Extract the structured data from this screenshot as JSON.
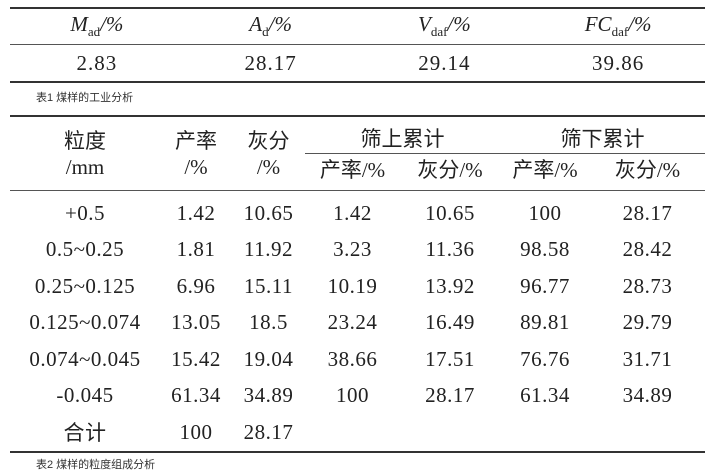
{
  "table1": {
    "headers": [
      {
        "main": "M",
        "sub": "ad",
        "unit": "/%"
      },
      {
        "main": "A",
        "sub": "d",
        "unit": "/%"
      },
      {
        "main": "V",
        "sub": "daf",
        "unit": "/%"
      },
      {
        "main": "FC",
        "sub": "daf",
        "unit": "/%"
      }
    ],
    "values": [
      "2.83",
      "28.17",
      "29.14",
      "39.86"
    ],
    "caption": "表1 煤样的工业分析"
  },
  "table2": {
    "headers": {
      "size": "粒度",
      "size_unit": "/mm",
      "yield": "产率",
      "yield_unit": "/%",
      "ash": "灰分",
      "ash_unit": "/%",
      "oversize_group": "筛上累计",
      "undersize_group": "筛下累计",
      "sub": [
        "产率/%",
        "灰分/%",
        "产率/%",
        "灰分/%"
      ]
    },
    "rows": [
      [
        "+0.5",
        "1.42",
        "10.65",
        "1.42",
        "10.65",
        "100",
        "28.17"
      ],
      [
        "0.5~0.25",
        "1.81",
        "11.92",
        "3.23",
        "11.36",
        "98.58",
        "28.42"
      ],
      [
        "0.25~0.125",
        "6.96",
        "15.11",
        "10.19",
        "13.92",
        "96.77",
        "28.73"
      ],
      [
        "0.125~0.074",
        "13.05",
        "18.5",
        "23.24",
        "16.49",
        "89.81",
        "29.79"
      ],
      [
        "0.074~0.045",
        "15.42",
        "19.04",
        "38.66",
        "17.51",
        "76.76",
        "31.71"
      ],
      [
        "-0.045",
        "61.34",
        "34.89",
        "100",
        "28.17",
        "61.34",
        "34.89"
      ],
      [
        "合计",
        "100",
        "28.17",
        "",
        "",
        "",
        ""
      ]
    ],
    "caption": "表2 煤样的粒度组成分析"
  }
}
